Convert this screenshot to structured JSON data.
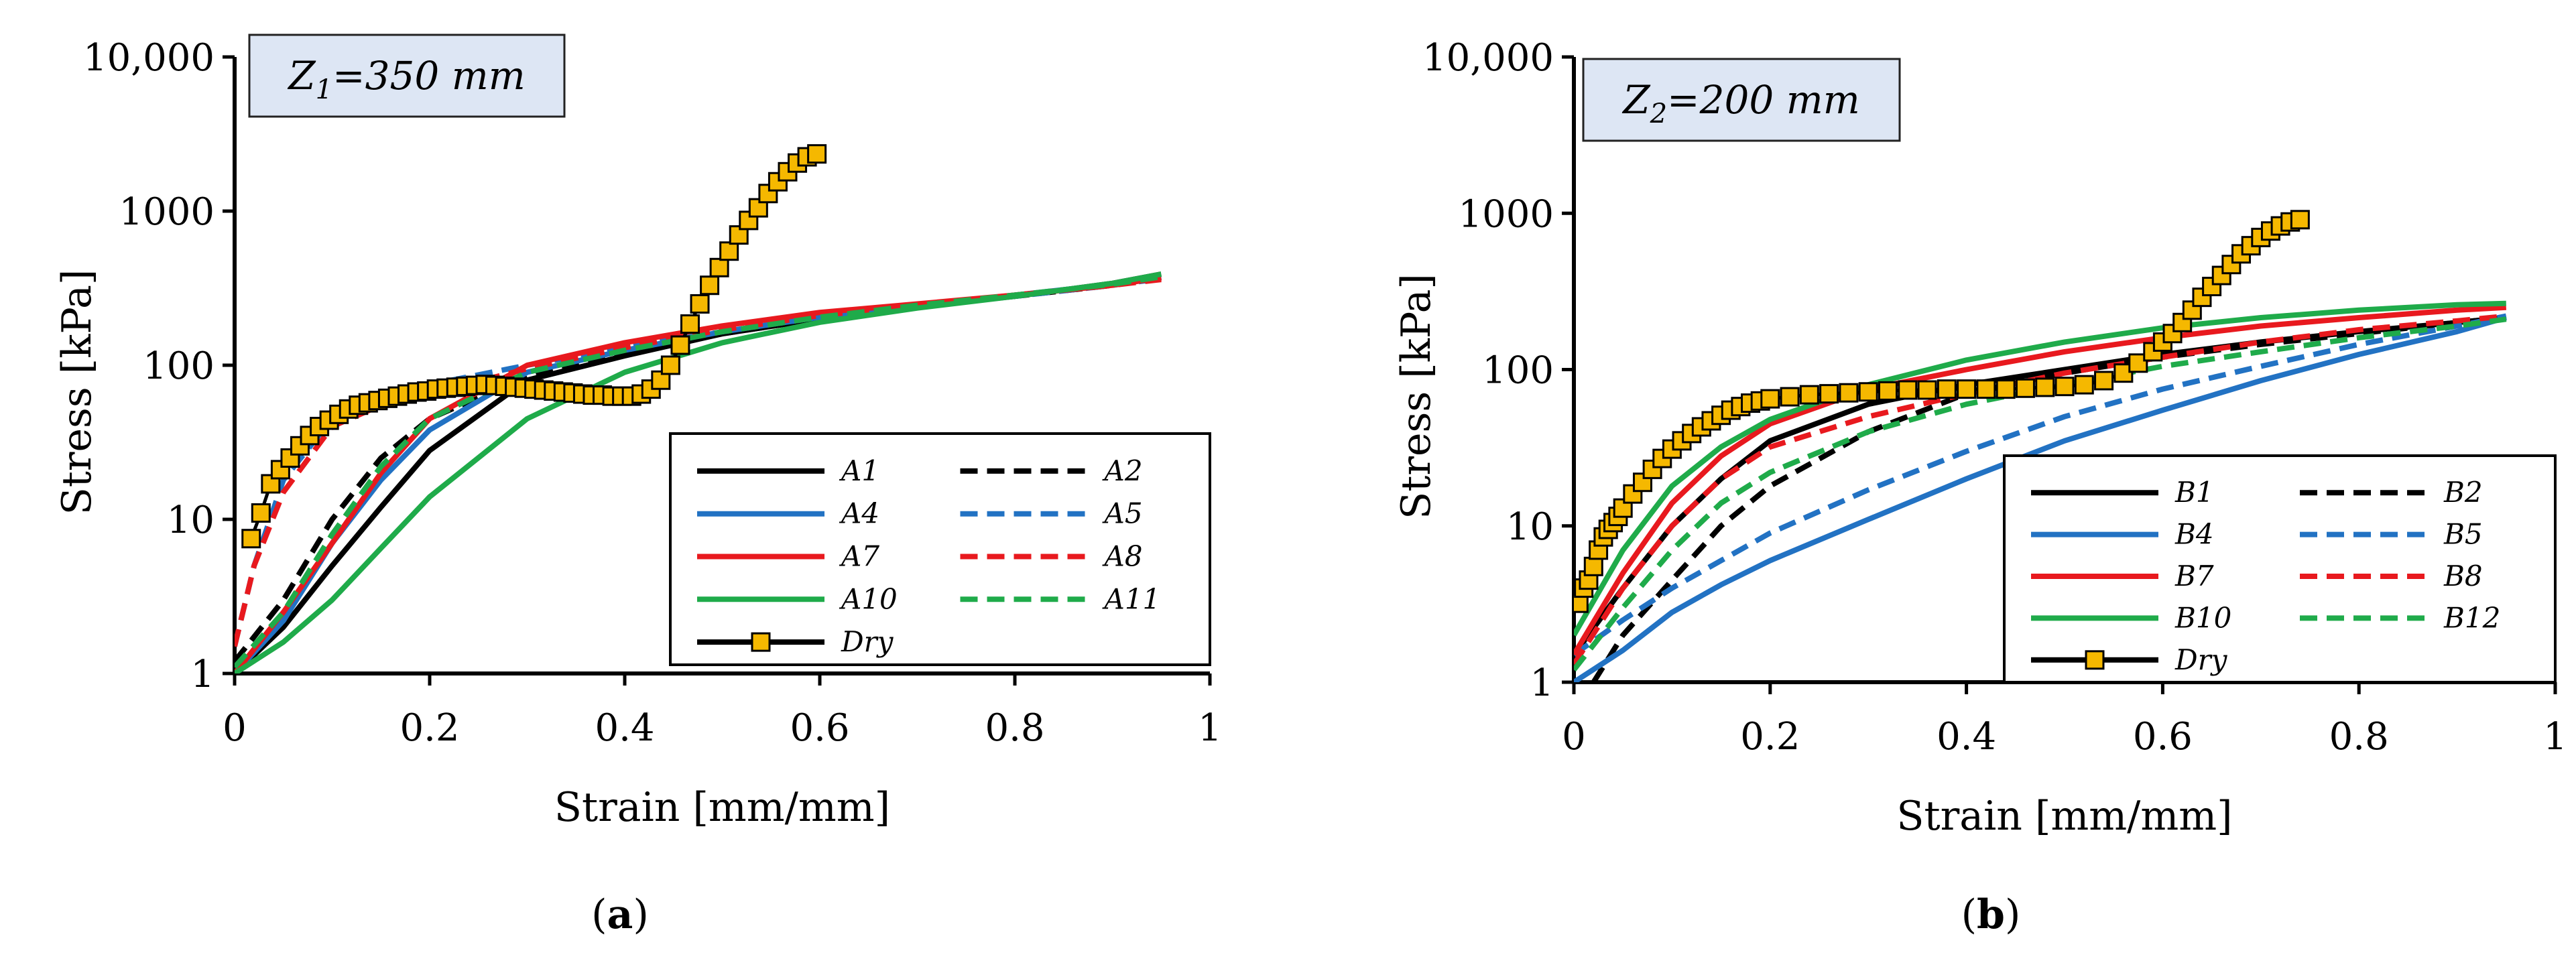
{
  "chart_data": [
    {
      "type": "line",
      "panel_caption": "a",
      "annotation": {
        "prefix": "Z",
        "sub": "1",
        "rest": "=350 mm"
      },
      "xlabel": "Strain [mm/mm]",
      "ylabel": "Stress [kPa]",
      "xlim": [
        0,
        1
      ],
      "ylim": [
        1,
        10000
      ],
      "yscale": "log",
      "x_ticks": [
        "0",
        "0.2",
        "0.4",
        "0.6",
        "0.8",
        "1"
      ],
      "y_ticks": [
        "1",
        "10",
        "100",
        "1000",
        "10,000"
      ],
      "legend_position": "lower-right",
      "series": [
        {
          "name": "A1",
          "color": "#000000",
          "dash": "solid",
          "x": [
            0,
            0.05,
            0.1,
            0.15,
            0.2,
            0.3,
            0.4,
            0.5,
            0.6,
            0.7,
            0.8,
            0.9,
            0.95
          ],
          "y": [
            1,
            2,
            5,
            12,
            28,
            80,
            115,
            160,
            200,
            240,
            280,
            340,
            390
          ]
        },
        {
          "name": "A2",
          "color": "#000000",
          "dash": "dashed",
          "x": [
            0,
            0.05,
            0.1,
            0.15,
            0.2,
            0.3,
            0.4,
            0.5,
            0.6,
            0.7,
            0.8,
            0.9,
            0.95
          ],
          "y": [
            1.2,
            3,
            10,
            25,
            45,
            85,
            120,
            160,
            200,
            240,
            280,
            330,
            370
          ]
        },
        {
          "name": "A4",
          "color": "#2272c3",
          "dash": "solid",
          "x": [
            0,
            0.05,
            0.1,
            0.15,
            0.2,
            0.3,
            0.4,
            0.5,
            0.6,
            0.7,
            0.8,
            0.9,
            0.95
          ],
          "y": [
            1,
            2.2,
            7,
            18,
            38,
            90,
            125,
            165,
            205,
            245,
            285,
            335,
            375
          ]
        },
        {
          "name": "A5",
          "color": "#2272c3",
          "dash": "dashed",
          "x": [
            0,
            0.02,
            0.05,
            0.1,
            0.15,
            0.2,
            0.3,
            0.4,
            0.5,
            0.6,
            0.7,
            0.8,
            0.9,
            0.95
          ],
          "y": [
            1.5,
            5,
            18,
            45,
            62,
            75,
            100,
            130,
            165,
            205,
            240,
            280,
            330,
            365
          ]
        },
        {
          "name": "A7",
          "color": "#e8191e",
          "dash": "solid",
          "x": [
            0,
            0.05,
            0.1,
            0.15,
            0.2,
            0.3,
            0.4,
            0.5,
            0.6,
            0.7,
            0.8,
            0.9,
            0.95
          ],
          "y": [
            1,
            2.5,
            7,
            20,
            45,
            100,
            140,
            180,
            220,
            250,
            285,
            330,
            370
          ]
        },
        {
          "name": "A8",
          "color": "#e8191e",
          "dash": "dashed",
          "x": [
            0,
            0.02,
            0.05,
            0.1,
            0.15,
            0.2,
            0.3,
            0.4,
            0.5,
            0.6,
            0.7,
            0.8,
            0.9,
            0.95
          ],
          "y": [
            1.5,
            5,
            15,
            40,
            55,
            65,
            95,
            130,
            170,
            210,
            245,
            285,
            330,
            360
          ]
        },
        {
          "name": "A10",
          "color": "#1fab4a",
          "dash": "solid",
          "x": [
            0,
            0.05,
            0.1,
            0.15,
            0.2,
            0.3,
            0.4,
            0.5,
            0.6,
            0.7,
            0.8,
            0.9,
            0.95
          ],
          "y": [
            1,
            1.6,
            3,
            6.5,
            14,
            45,
            90,
            140,
            190,
            235,
            280,
            340,
            390
          ]
        },
        {
          "name": "A11",
          "color": "#1fab4a",
          "dash": "dashed",
          "x": [
            0,
            0.05,
            0.1,
            0.15,
            0.2,
            0.3,
            0.4,
            0.5,
            0.6,
            0.7,
            0.8,
            0.9,
            0.95
          ],
          "y": [
            1.1,
            2.5,
            8,
            22,
            45,
            90,
            125,
            165,
            205,
            245,
            285,
            335,
            375
          ]
        },
        {
          "name": "Dry",
          "color": "#000000",
          "dash": "solid",
          "markers": true,
          "marker_color": "#f5b800",
          "x": [
            0.017,
            0.027,
            0.037,
            0.047,
            0.057,
            0.067,
            0.077,
            0.087,
            0.097,
            0.107,
            0.117,
            0.127,
            0.137,
            0.147,
            0.157,
            0.167,
            0.177,
            0.187,
            0.197,
            0.207,
            0.217,
            0.227,
            0.237,
            0.247,
            0.257,
            0.267,
            0.277,
            0.287,
            0.297,
            0.307,
            0.317,
            0.327,
            0.337,
            0.347,
            0.357,
            0.367,
            0.377,
            0.387,
            0.397,
            0.407,
            0.417,
            0.427,
            0.437,
            0.447,
            0.457,
            0.467,
            0.477,
            0.487,
            0.497,
            0.507,
            0.517,
            0.527,
            0.537,
            0.547,
            0.557,
            0.567,
            0.577,
            0.587,
            0.597
          ],
          "y": [
            7.5,
            11,
            17,
            21,
            25,
            30,
            35,
            40,
            44,
            48,
            52,
            55,
            57,
            59,
            61,
            63,
            65,
            67,
            68,
            70,
            71,
            72,
            73,
            74,
            75,
            74,
            73,
            72,
            71,
            70,
            69,
            68,
            67,
            66,
            65,
            64,
            64,
            63,
            63,
            63,
            65,
            70,
            80,
            100,
            135,
            185,
            250,
            330,
            430,
            550,
            700,
            870,
            1050,
            1300,
            1550,
            1800,
            2050,
            2250,
            2350
          ]
        }
      ]
    },
    {
      "type": "line",
      "panel_caption": "b",
      "annotation": {
        "prefix": "Z",
        "sub": "2",
        "rest": "=200 mm"
      },
      "xlabel": "Strain [mm/mm]",
      "ylabel": "Stress [kPa]",
      "xlim": [
        0,
        1
      ],
      "ylim": [
        1,
        10000
      ],
      "yscale": "log",
      "x_ticks": [
        "0",
        "0.2",
        "0.4",
        "0.6",
        "0.8",
        "1"
      ],
      "y_ticks": [
        "1",
        "10",
        "100",
        "1000",
        "10,000"
      ],
      "legend_position": "lower-right",
      "series": [
        {
          "name": "B1",
          "color": "#000000",
          "dash": "solid",
          "x": [
            0,
            0.05,
            0.1,
            0.15,
            0.2,
            0.3,
            0.4,
            0.5,
            0.6,
            0.7,
            0.8,
            0.9,
            0.95
          ],
          "y": [
            1.5,
            4,
            10,
            20,
            35,
            60,
            80,
            100,
            125,
            150,
            175,
            200,
            215
          ]
        },
        {
          "name": "B2",
          "color": "#000000",
          "dash": "dashed",
          "x": [
            0.02,
            0.05,
            0.1,
            0.15,
            0.2,
            0.3,
            0.4,
            0.5,
            0.6,
            0.7,
            0.8,
            0.9,
            0.95
          ],
          "y": [
            1,
            2,
            4.5,
            10,
            18,
            40,
            70,
            95,
            120,
            145,
            170,
            200,
            215
          ]
        },
        {
          "name": "B4",
          "color": "#2272c3",
          "dash": "solid",
          "x": [
            0,
            0.05,
            0.1,
            0.15,
            0.2,
            0.3,
            0.4,
            0.5,
            0.6,
            0.7,
            0.8,
            0.9,
            0.95
          ],
          "y": [
            1,
            1.6,
            2.8,
            4.2,
            6,
            11,
            20,
            35,
            55,
            85,
            125,
            175,
            215
          ]
        },
        {
          "name": "B5",
          "color": "#2272c3",
          "dash": "dashed",
          "x": [
            0,
            0.05,
            0.1,
            0.15,
            0.2,
            0.3,
            0.4,
            0.5,
            0.6,
            0.7,
            0.8,
            0.9,
            0.95
          ],
          "y": [
            1.5,
            2.5,
            4,
            6,
            9,
            17,
            30,
            50,
            75,
            105,
            145,
            190,
            220
          ]
        },
        {
          "name": "B7",
          "color": "#e8191e",
          "dash": "solid",
          "x": [
            0,
            0.05,
            0.1,
            0.15,
            0.2,
            0.3,
            0.4,
            0.5,
            0.6,
            0.7,
            0.8,
            0.9,
            0.95
          ],
          "y": [
            1.5,
            5,
            14,
            28,
            45,
            75,
            100,
            130,
            160,
            190,
            215,
            240,
            250
          ]
        },
        {
          "name": "B8",
          "color": "#e8191e",
          "dash": "dashed",
          "x": [
            0,
            0.05,
            0.1,
            0.15,
            0.2,
            0.3,
            0.4,
            0.5,
            0.6,
            0.7,
            0.8,
            0.9,
            0.95
          ],
          "y": [
            1.3,
            4,
            10,
            20,
            32,
            50,
            70,
            95,
            120,
            150,
            180,
            205,
            220
          ]
        },
        {
          "name": "B10",
          "color": "#1fab4a",
          "dash": "solid",
          "x": [
            0,
            0.05,
            0.1,
            0.15,
            0.2,
            0.3,
            0.4,
            0.5,
            0.6,
            0.7,
            0.8,
            0.9,
            0.95
          ],
          "y": [
            2,
            7,
            18,
            32,
            48,
            80,
            115,
            150,
            185,
            215,
            240,
            260,
            265
          ]
        },
        {
          "name": "B12",
          "color": "#1fab4a",
          "dash": "dashed",
          "x": [
            0,
            0.05,
            0.1,
            0.15,
            0.2,
            0.3,
            0.4,
            0.5,
            0.6,
            0.7,
            0.8,
            0.9,
            0.95
          ],
          "y": [
            1.2,
            3,
            7,
            14,
            22,
            40,
            60,
            80,
            105,
            130,
            160,
            190,
            210
          ]
        },
        {
          "name": "Dry",
          "color": "#000000",
          "dash": "solid",
          "markers": true,
          "marker_color": "#f5b800",
          "x": [
            0.005,
            0.01,
            0.015,
            0.02,
            0.025,
            0.03,
            0.035,
            0.04,
            0.045,
            0.05,
            0.06,
            0.07,
            0.08,
            0.09,
            0.1,
            0.11,
            0.12,
            0.13,
            0.14,
            0.15,
            0.16,
            0.17,
            0.18,
            0.19,
            0.2,
            0.22,
            0.24,
            0.26,
            0.28,
            0.3,
            0.32,
            0.34,
            0.36,
            0.38,
            0.4,
            0.42,
            0.44,
            0.46,
            0.48,
            0.5,
            0.52,
            0.54,
            0.56,
            0.575,
            0.59,
            0.6,
            0.61,
            0.62,
            0.63,
            0.64,
            0.65,
            0.66,
            0.67,
            0.68,
            0.69,
            0.7,
            0.71,
            0.72,
            0.73,
            0.74
          ],
          "y": [
            3.2,
            4,
            4.5,
            5.5,
            7,
            8.5,
            9.5,
            10.5,
            11.5,
            13,
            16,
            19,
            23,
            27,
            31,
            35,
            39,
            43,
            47,
            51,
            55,
            58,
            61,
            63,
            65,
            67,
            69,
            70,
            71,
            72,
            73,
            74,
            74,
            75,
            75,
            75,
            75,
            76,
            77,
            78,
            80,
            85,
            95,
            110,
            130,
            150,
            170,
            200,
            240,
            290,
            340,
            400,
            470,
            550,
            620,
            700,
            770,
            830,
            880,
            910
          ]
        }
      ]
    }
  ]
}
